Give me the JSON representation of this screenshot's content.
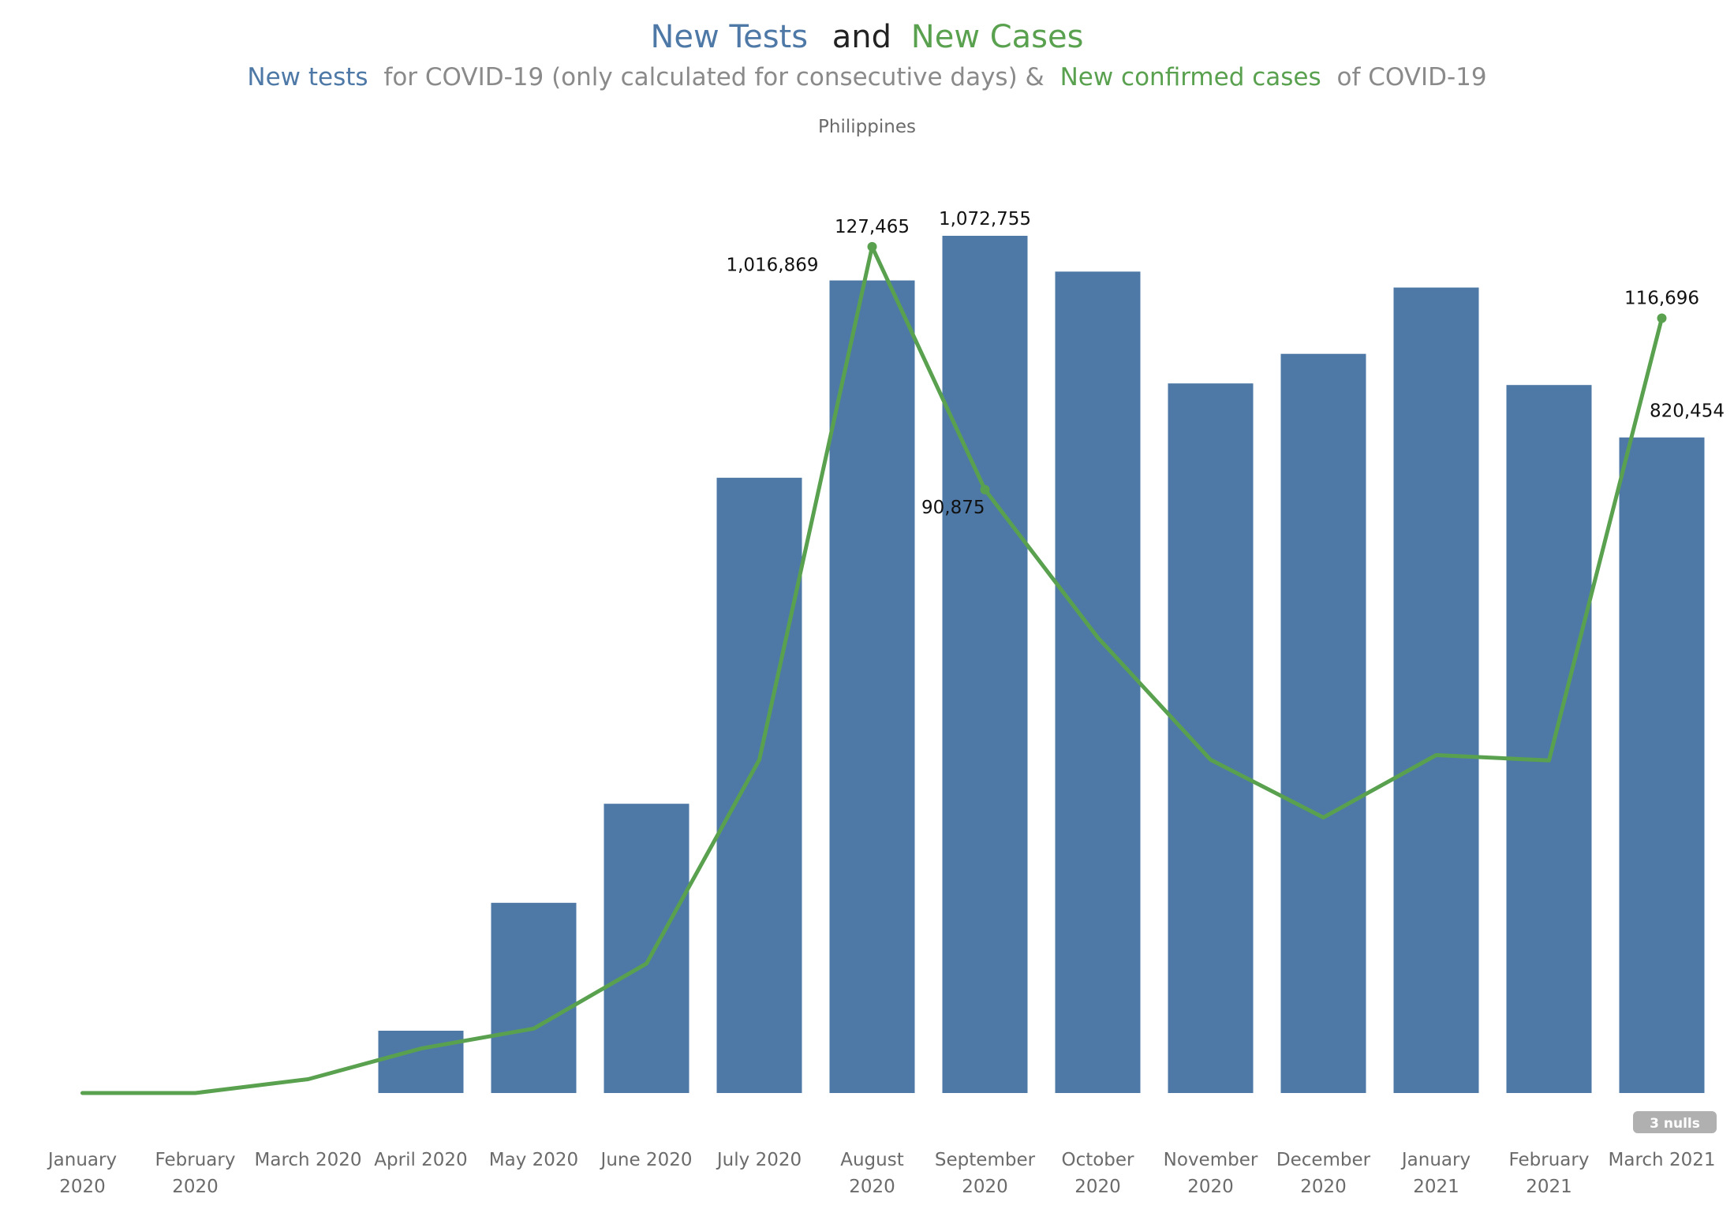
{
  "title": {
    "part1": "New Tests",
    "part2": "and",
    "part3": "New Cases"
  },
  "subtitle": {
    "part1": "New tests",
    "part2": "for COVID-19 (only calculated for consecutive days) &",
    "part3": "New confirmed cases",
    "part4": "of COVID-19"
  },
  "facet_label": "Philippines",
  "nulls_badge": "3 nulls",
  "colors": {
    "tests": "#4e79a7",
    "cases": "#59a14f",
    "axis_text": "#6b6b6b",
    "badge": "#b0b0b0"
  },
  "chart_data": {
    "type": "bar",
    "categories": [
      [
        "January",
        "2020"
      ],
      [
        "February",
        "2020"
      ],
      [
        "March 2020"
      ],
      [
        "April 2020"
      ],
      [
        "May 2020"
      ],
      [
        "June 2020"
      ],
      [
        "July 2020"
      ],
      [
        "August",
        "2020"
      ],
      [
        "September",
        "2020"
      ],
      [
        "October",
        "2020"
      ],
      [
        "November",
        "2020"
      ],
      [
        "December",
        "2020"
      ],
      [
        "January",
        "2021"
      ],
      [
        "February",
        "2021"
      ],
      [
        "March 2021"
      ]
    ],
    "series": [
      {
        "name": "New tests",
        "type": "bar",
        "axis": "left",
        "values": [
          null,
          null,
          null,
          78000,
          238000,
          362000,
          770000,
          1016869,
          1072755,
          1028000,
          888000,
          925000,
          1008000,
          886000,
          820454
        ],
        "labels": [
          null,
          null,
          null,
          null,
          null,
          null,
          null,
          "1,016,869",
          "1,072,755",
          null,
          null,
          null,
          null,
          null,
          "820,454"
        ]
      },
      {
        "name": "New confirmed cases",
        "type": "line",
        "axis": "right",
        "values": [
          1,
          2,
          2084,
          6700,
          9700,
          19500,
          50200,
          127465,
          90875,
          68600,
          50200,
          41500,
          50900,
          50100,
          116696
        ],
        "labels": [
          null,
          null,
          null,
          null,
          null,
          null,
          null,
          "127,465",
          "90,875",
          null,
          null,
          null,
          null,
          null,
          "116,696"
        ]
      }
    ],
    "axes": {
      "left_ylim": [
        0,
        1130000
      ],
      "right_ylim": [
        0,
        136000
      ]
    },
    "grid": false,
    "legend": "none (encoded in title colors)"
  }
}
